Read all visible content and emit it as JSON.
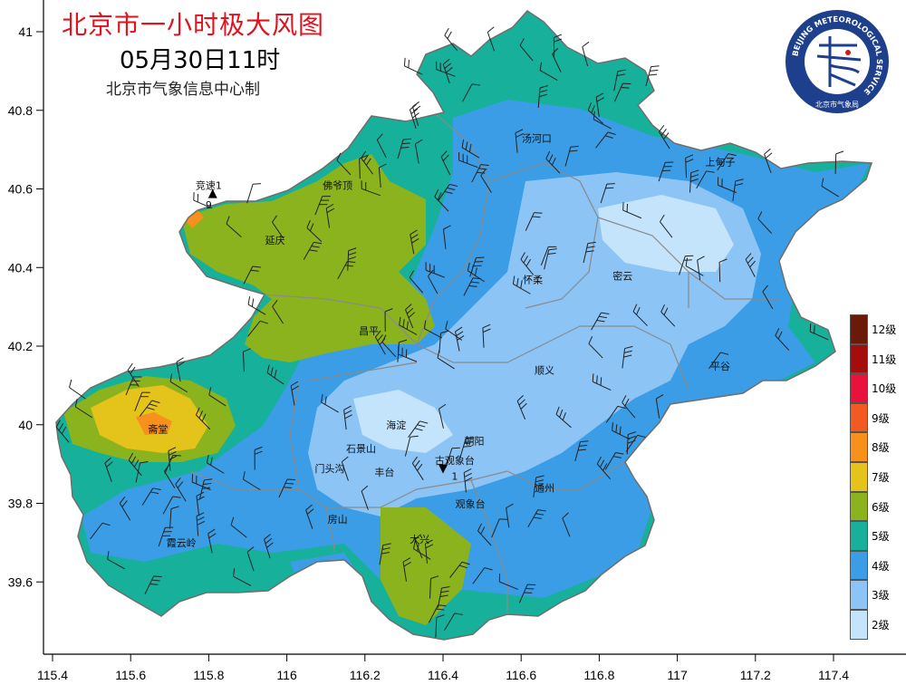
{
  "header": {
    "title": "北京市一小时极大风图",
    "datetime": "05月30日11时",
    "producer": "北京市气象信息中心制"
  },
  "logo": {
    "ring_text": "BEIJING METEOROLOGICAL SERVICE",
    "name_text": "北京市气象局"
  },
  "axes": {
    "lat_ticks": [
      "41",
      "40.8",
      "40.6",
      "40.4",
      "40.2",
      "40",
      "39.8",
      "39.6"
    ],
    "lon_ticks": [
      "115.4",
      "115.6",
      "115.8",
      "116",
      "116.2",
      "116.4",
      "116.6",
      "116.8",
      "117",
      "117.2",
      "117.4"
    ]
  },
  "legend": {
    "items": [
      {
        "label": "12级",
        "color": "#6b1a0a"
      },
      {
        "label": "11级",
        "color": "#a50d0d"
      },
      {
        "label": "10级",
        "color": "#e8123c"
      },
      {
        "label": "9级",
        "color": "#f25a22"
      },
      {
        "label": "8级",
        "color": "#f8901c"
      },
      {
        "label": "7级",
        "color": "#e4c41a"
      },
      {
        "label": "6级",
        "color": "#8ab31e"
      },
      {
        "label": "5级",
        "color": "#17b09a"
      },
      {
        "label": "4级",
        "color": "#3a9de6"
      },
      {
        "label": "3级",
        "color": "#8cc4f6"
      },
      {
        "label": "2级",
        "color": "#c4e4fb"
      }
    ]
  },
  "places": [
    {
      "name": "竞速1",
      "lon": 115.8,
      "lat": 40.6
    },
    {
      "name": "9",
      "lon": 115.8,
      "lat": 40.55
    },
    {
      "name": "佛爷顶",
      "lon": 116.13,
      "lat": 40.6
    },
    {
      "name": "延庆",
      "lon": 115.97,
      "lat": 40.46
    },
    {
      "name": "汤河口",
      "lon": 116.64,
      "lat": 40.72
    },
    {
      "name": "上甸子",
      "lon": 117.11,
      "lat": 40.66
    },
    {
      "name": "怀柔",
      "lon": 116.63,
      "lat": 40.36
    },
    {
      "name": "密云",
      "lon": 116.86,
      "lat": 40.37
    },
    {
      "name": "昌平",
      "lon": 116.21,
      "lat": 40.23
    },
    {
      "name": "平谷",
      "lon": 117.11,
      "lat": 40.14
    },
    {
      "name": "顺义",
      "lon": 116.66,
      "lat": 40.13
    },
    {
      "name": "斋堂",
      "lon": 115.67,
      "lat": 39.98
    },
    {
      "name": "海淀",
      "lon": 116.28,
      "lat": 39.99
    },
    {
      "name": "石景山",
      "lon": 116.19,
      "lat": 39.93
    },
    {
      "name": "朝阳",
      "lon": 116.48,
      "lat": 39.95
    },
    {
      "name": "古观象台",
      "lon": 116.43,
      "lat": 39.9
    },
    {
      "name": "1",
      "lon": 116.43,
      "lat": 39.86
    },
    {
      "name": "门头沟",
      "lon": 116.11,
      "lat": 39.88
    },
    {
      "name": "丰台",
      "lon": 116.25,
      "lat": 39.87
    },
    {
      "name": "通州",
      "lon": 116.66,
      "lat": 39.83
    },
    {
      "name": "观象台",
      "lon": 116.47,
      "lat": 39.79
    },
    {
      "name": "房山",
      "lon": 116.13,
      "lat": 39.75
    },
    {
      "name": "大兴",
      "lon": 116.34,
      "lat": 39.7
    },
    {
      "name": "霞云岭",
      "lon": 115.73,
      "lat": 39.69
    }
  ],
  "markers": [
    {
      "type": "max",
      "symbol": "▲",
      "lon": 115.81,
      "lat": 40.58
    },
    {
      "type": "min",
      "symbol": "▼",
      "lon": 116.4,
      "lat": 39.88
    }
  ]
}
